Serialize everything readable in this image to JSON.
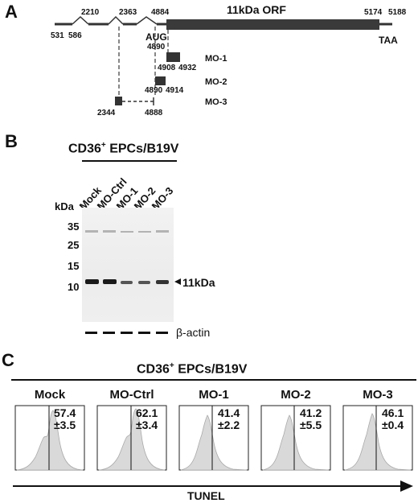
{
  "panel_a": {
    "label": "A",
    "orf_label": "11kDa ORF",
    "start_codon": "AUG",
    "stop_codon": "TAA",
    "positions": [
      "531",
      "586",
      "2210",
      "2363",
      "4884",
      "4890",
      "5174",
      "5188",
      "4908",
      "4932",
      "4890",
      "4914",
      "2344",
      "4888"
    ],
    "morpholinos": [
      "MO-1",
      "MO-2",
      "MO-3"
    ]
  },
  "panel_b": {
    "label": "B",
    "title": "CD36",
    "title_sup": "+",
    "title_rest": " EPCs/B19V",
    "lanes": [
      "Mock",
      "MO-Ctrl",
      "MO-1",
      "MO-2",
      "MO-3"
    ],
    "kda_label": "kDa",
    "markers": [
      "35",
      "25",
      "15",
      "10"
    ],
    "band_label": "11kDa",
    "loading_label": "β-actin"
  },
  "panel_c": {
    "label": "C",
    "title": "CD36",
    "title_sup": "+",
    "title_rest": " EPCs/B19V",
    "x_label": "TUNEL",
    "histograms": [
      {
        "name": "Mock",
        "mean": "57.4",
        "sd": "±3.5"
      },
      {
        "name": "MO-Ctrl",
        "mean": "62.1",
        "sd": "±3.4"
      },
      {
        "name": "MO-1",
        "mean": "41.4",
        "sd": "±2.2"
      },
      {
        "name": "MO-2",
        "mean": "41.2",
        "sd": "±5.5"
      },
      {
        "name": "MO-3",
        "mean": "46.1",
        "sd": "±0.4"
      }
    ]
  },
  "chart_data": {
    "type": "bar",
    "title": "CD36+ EPCs/B19V",
    "xlabel": "TUNEL",
    "categories": [
      "Mock",
      "MO-Ctrl",
      "MO-1",
      "MO-2",
      "MO-3"
    ],
    "values": [
      57.4,
      62.1,
      41.4,
      41.2,
      46.1
    ],
    "errors": [
      3.5,
      3.4,
      2.2,
      5.5,
      0.4
    ]
  }
}
